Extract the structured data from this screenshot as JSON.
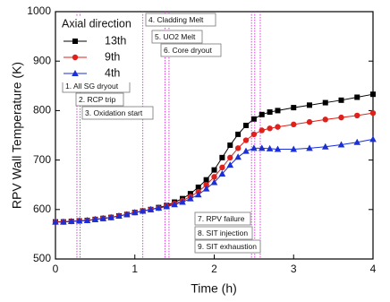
{
  "chart_data": {
    "type": "line",
    "xlabel": "Time (h)",
    "ylabel": "RPV Wall Temperature (K)",
    "xlim": [
      0,
      4
    ],
    "xticks": [
      0,
      1,
      2,
      3,
      4
    ],
    "ylim": [
      500,
      1000
    ],
    "yticks": [
      500,
      600,
      700,
      800,
      900,
      1000
    ],
    "legend_title": "Axial direction",
    "legend_position": "upper left",
    "x": [
      0,
      0.1,
      0.2,
      0.3,
      0.4,
      0.5,
      0.6,
      0.7,
      0.8,
      0.9,
      1.0,
      1.1,
      1.2,
      1.3,
      1.4,
      1.5,
      1.6,
      1.7,
      1.8,
      1.9,
      2.0,
      2.1,
      2.2,
      2.3,
      2.4,
      2.5,
      2.6,
      2.7,
      2.8,
      3.0,
      3.2,
      3.4,
      3.6,
      3.8,
      4.0
    ],
    "series": [
      {
        "name": "13th",
        "color": "#000000",
        "marker": "square",
        "values": [
          575,
          575,
          576,
          577,
          578,
          580,
          582,
          584,
          587,
          590,
          594,
          597,
          600,
          604,
          608,
          615,
          622,
          632,
          645,
          660,
          680,
          705,
          730,
          752,
          770,
          783,
          792,
          797,
          800,
          806,
          811,
          816,
          821,
          827,
          833
        ]
      },
      {
        "name": "9th",
        "color": "#e0201b",
        "marker": "circle",
        "values": [
          575,
          575,
          576,
          577,
          578,
          580,
          582,
          584,
          587,
          590,
          594,
          597,
          600,
          603,
          607,
          612,
          618,
          626,
          636,
          650,
          666,
          685,
          705,
          724,
          740,
          752,
          760,
          764,
          767,
          772,
          777,
          782,
          786,
          790,
          795
        ]
      },
      {
        "name": "4th",
        "color": "#1a2fd6",
        "marker": "triangle",
        "values": [
          575,
          575,
          576,
          577,
          578,
          580,
          582,
          584,
          587,
          590,
          594,
          597,
          600,
          603,
          606,
          610,
          615,
          622,
          630,
          642,
          655,
          672,
          690,
          706,
          718,
          724,
          724,
          723,
          722,
          722,
          724,
          727,
          731,
          736,
          742
        ]
      }
    ],
    "event_lines": [
      0.27,
      0.31,
      1.1,
      1.38,
      1.43,
      2.47,
      2.51,
      2.58
    ],
    "event_color": "#e040e0",
    "annotations": [
      "1. All SG dryout",
      "2. RCP trip",
      "3. Oxidation start",
      "4. Cladding Melt",
      "5. UO2 Melt",
      "6. Core dryout",
      "7. RPV failure",
      "8. SIT injection",
      "9. SIT exhaustion"
    ]
  }
}
